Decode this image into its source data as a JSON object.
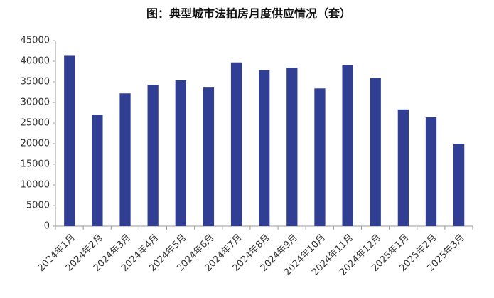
{
  "chart_data": {
    "type": "bar",
    "title": "图：典型城市法拍房月度供应情况（套）",
    "categories": [
      "2024年1月",
      "2024年2月",
      "2024年3月",
      "2024年4月",
      "2024年5月",
      "2024年6月",
      "2024年7月",
      "2024年8月",
      "2024年9月",
      "2024年10月",
      "2024年11月",
      "2024年12月",
      "2025年1月",
      "2025年2月",
      "2025年3月"
    ],
    "values": [
      41300,
      27000,
      32200,
      34300,
      35400,
      33600,
      39700,
      37800,
      38400,
      33400,
      39000,
      35900,
      28300,
      26400,
      20000
    ],
    "color": "#303f93",
    "ylim": [
      0,
      45000
    ],
    "yticks": [
      0,
      5000,
      10000,
      15000,
      20000,
      25000,
      30000,
      35000,
      40000,
      45000
    ],
    "grid": false
  }
}
